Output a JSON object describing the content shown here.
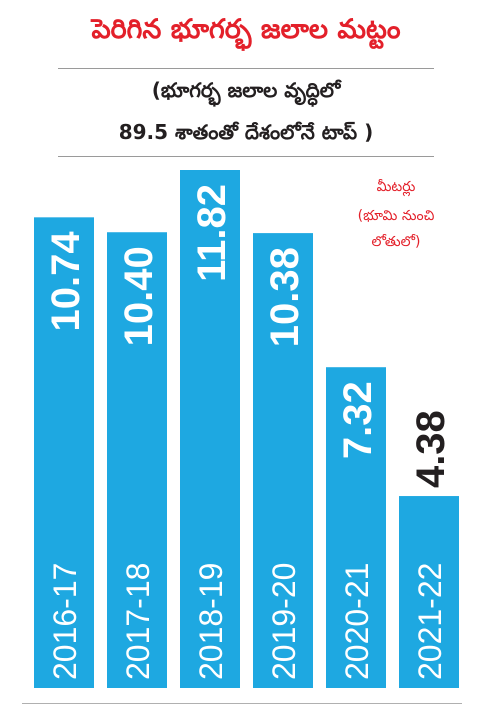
{
  "title": "పెరిగిన భూగర్భ జలాల మట్టం",
  "subtitle_line1": "(భూగర్భ జలాల వృద్ధిలో",
  "subtitle_line2": "89.5 శాతంతో దేశంలోనే టాప్ )",
  "unit_line1": "మీటర్లు",
  "unit_line2": "(భూమి నుంచి",
  "unit_line3": "లోతులో)",
  "colors": {
    "bar": "#1ea8e1",
    "title": "#e3202a",
    "unit": "#e3202a",
    "inside_label": "#ffffff",
    "outside_label": "#231f20"
  },
  "chart_data": {
    "type": "bar",
    "categories": [
      "2016-17",
      "2017-18",
      "2018-19",
      "2019-20",
      "2020-21",
      "2021-22"
    ],
    "values": [
      10.74,
      10.4,
      11.82,
      10.38,
      7.32,
      4.38
    ],
    "value_labels": [
      "10.74",
      "10.40",
      "11.82",
      "10.38",
      "7.32",
      "4.38"
    ],
    "title": "పెరిగిన భూగర్భ జలాల మట్టం",
    "xlabel": "",
    "ylabel": "మీటర్లు (భూమి నుంచి లోతులో)",
    "ylim": [
      0,
      11.82
    ],
    "grid": false,
    "legend": "none"
  }
}
